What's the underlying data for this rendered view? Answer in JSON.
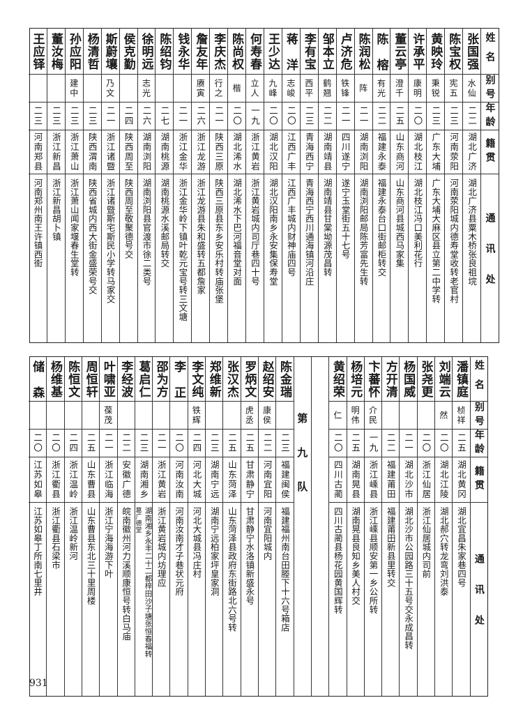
{
  "headers": {
    "name": "姓名",
    "alias": "别号",
    "age": "年龄",
    "native": "籍贯",
    "address": "通讯处"
  },
  "top_table": [
    {
      "name": "张国强",
      "alias": "水仙",
      "age": "二二",
      "native": "湖北广济",
      "address": "湖北广济县粟木桥张良祖垸"
    },
    {
      "name": "陈宝权",
      "alias": "宪五",
      "age": "二三",
      "native": "河南荥阳",
      "address": "河南荥阳城内德寿堂收转老官村"
    },
    {
      "name": "黄映玲",
      "alias": "秉锐",
      "age": "二三",
      "native": "广东大埔",
      "address": "广东大埔大麻区县立第二中学转"
    },
    {
      "name": "许承平",
      "alias": "康明",
      "age": "二〇",
      "native": "湖北枝江",
      "address": "湖北枝江冯口美利花行"
    },
    {
      "name": "董云亭",
      "alias": "澄千",
      "age": "二五",
      "native": "山东商河",
      "address": "山东商河县城西马家集"
    },
    {
      "name": "陈榕",
      "alias": "有光",
      "age": "二二",
      "native": "福建永泰",
      "address": "福建永泰台口街邮柜转交"
    },
    {
      "name": "陈润松",
      "alias": "阵",
      "age": "二一",
      "native": "湖南浏阳",
      "address": "湖南浏阳邮局陈芳富先生转"
    },
    {
      "name": "卢济危",
      "alias": "铁锋",
      "age": "二一",
      "native": "四川遂宁",
      "address": "遂宁玉堂街五十七号"
    },
    {
      "name": "邹本立",
      "alias": "鹤翘",
      "age": "二二",
      "native": "湖南靖县",
      "address": "湖南靖县甘棠坳源茂昌转"
    },
    {
      "name": "李有宝",
      "alias": "西平",
      "age": "二三",
      "native": "青海西宁",
      "address": "青海西宁西川通海镇河沿庄"
    },
    {
      "name": "蒋洋",
      "alias": "志峻",
      "age": "二〇",
      "native": "江西广丰",
      "address": "江西广丰城内财神庙四号"
    },
    {
      "name": "王少达",
      "alias": "九峰",
      "age": "二〇",
      "native": "湖北汉阳",
      "address": "湖北汉阳南乡永安集保寿堂"
    },
    {
      "name": "何寿春",
      "alias": "立人",
      "age": "一九",
      "native": "浙江黄岩",
      "address": "浙江黄岩城内司厅巷四十号"
    },
    {
      "name": "陈尚权",
      "alias": "楷",
      "age": "二〇",
      "native": "湖北浠水",
      "address": "湖北浠水下巴河福音堂对面"
    },
    {
      "name": "李庆杰",
      "alias": "行之",
      "age": "二一",
      "native": "陕西三原",
      "address": "陕西三原县东乡安乐村转庙张堡"
    },
    {
      "name": "詹友年",
      "alias": "赓寅",
      "age": "二六",
      "native": "浙江龙游",
      "address": "浙江龙游县朱和盛转五都詹家"
    },
    {
      "name": "钱永华",
      "alias": "",
      "age": "二一",
      "native": "浙江金华",
      "address": "浙江金华岭下镇叶乾元宝号转三文塘"
    },
    {
      "name": "陈绍钧",
      "alias": "",
      "age": "二七",
      "native": "湖南桃源",
      "address": "湖南桃源水溪邮局转交"
    },
    {
      "name": "徐明远",
      "alias": "志光",
      "age": "二六",
      "native": "湖南浏阳",
      "address": "湖南浏阳县官渡市徐二类号"
    },
    {
      "name": "侯克勤",
      "alias": "",
      "age": "二四",
      "native": "陕西周至",
      "address": "陕西周至敬聚德号交"
    },
    {
      "name": "斯蔚壤",
      "alias": "乃文",
      "age": "二一",
      "native": "浙江诸暨",
      "address": "浙江诸暨斯宅斯民小学转马家交"
    },
    {
      "name": "杨清哲",
      "alias": "",
      "age": "二三",
      "native": "陕西渭南",
      "address": "陕西省城内西大街金盛荣号交"
    },
    {
      "name": "孙应阳",
      "alias": "建中",
      "age": "二三",
      "native": "浙江萧山",
      "address": "浙江萧山闻家堰春生堂转"
    },
    {
      "name": "董汝梅",
      "alias": "",
      "age": "二三",
      "native": "浙江新昌",
      "address": "浙江新昌胡卜镇"
    },
    {
      "name": "王应铎",
      "alias": "",
      "age": "二三",
      "native": "河南郑县",
      "address": "河南郑州南王许镇西街"
    }
  ],
  "bottom_table": {
    "right_group": [
      {
        "name": "潘镇庭",
        "alias": "桢祥",
        "age": "二五",
        "native": "湖北黄冈",
        "address": "湖北宜昌朱家巷四号"
      },
      {
        "name": "刘端云",
        "alias": "然",
        "age": "二〇",
        "native": "湖北江陵",
        "address": "湖北郝穴转龙弯刘洪泰"
      },
      {
        "name": "张尧更",
        "alias": "",
        "age": "二〇",
        "native": "浙江仙居",
        "address": "浙江仙居城内司前"
      },
      {
        "name": "杨国威",
        "alias": "",
        "age": "二一",
        "native": "湖北沙市",
        "address": "湖北沙市公园路三十五号交永成昌转"
      },
      {
        "name": "方开清",
        "alias": "",
        "age": "二二",
        "native": "福建莆田",
        "address": "福建莆田新县里转交"
      },
      {
        "name": "卞蕃怀",
        "alias": "介民",
        "age": "一九",
        "native": "浙江嵊县",
        "address": "浙江嵊县顺安第一乡公所转"
      },
      {
        "name": "杨培元",
        "alias": "明伟",
        "age": "二五",
        "native": "湖南晃县",
        "address": "湖南晃县良知乡美人村交"
      },
      {
        "name": "黄绍荣",
        "alias": "仁",
        "age": "二〇",
        "native": "四川古蔺",
        "address": "四川古蔺县杨花园黄国辉转"
      }
    ],
    "team_label": "第九队",
    "left_group": [
      {
        "name": "陈金瑞",
        "alias": "",
        "age": "二三",
        "native": "福建闽侯",
        "address": "福建福州南台田塍下十六号箱店"
      },
      {
        "name": "赵绍安",
        "alias": "康侯",
        "age": "二二",
        "native": "河南宜阳",
        "address": "河南宜阳城内"
      },
      {
        "name": "罗炳文",
        "alias": "虎丞",
        "age": "二五",
        "native": "甘肃静宁",
        "address": "甘肃静宁水洛镇新盛永号"
      },
      {
        "name": "张汉杰",
        "alias": "",
        "age": "二五",
        "native": "山东菏泽",
        "address": "山东菏泽县政府东街路北六号转"
      },
      {
        "name": "郑维新",
        "alias": "",
        "age": "二三",
        "native": "湖南宁远",
        "address": "湖南宁远柏家坪皇家洞"
      },
      {
        "name": "李文纯",
        "alias": "铁辉",
        "age": "二四",
        "native": "河北大城",
        "address": "河北大城县冯庄村"
      },
      {
        "name": "李正",
        "alias": "",
        "age": "二〇",
        "native": "河南汝南",
        "address": "河南汝南才子巷状元府"
      },
      {
        "name": "邵为方",
        "alias": "",
        "age": "二一",
        "native": "浙江黄岩",
        "address": "浙江黄岩城内坊理应"
      },
      {
        "name": "葛启仁",
        "alias": "",
        "age": "二三",
        "native": "湖南湘乡",
        "address": "湖南湘乡永丰二十二都梓田沙子塘张恒春福转",
        "address_note": "葛广德堂"
      },
      {
        "name": "李经波",
        "alias": "",
        "age": "二二",
        "native": "安徽广德",
        "address": "皖南徽州河力溪顺康恒号转白马庙"
      },
      {
        "name": "叶啸亚",
        "alias": "葆茂",
        "age": "二一",
        "native": "浙江临海",
        "address": "浙江宁海海游下叶"
      },
      {
        "name": "周恒轩",
        "alias": "",
        "age": "二五",
        "native": "山东曹县",
        "address": "山东曹县东北三十里周楼"
      },
      {
        "name": "陈恒文",
        "alias": "",
        "age": "二四",
        "native": "浙江温岭",
        "address": "浙江温岭新河"
      },
      {
        "name": "杨维基",
        "alias": "",
        "age": "二〇",
        "native": "浙江衢县",
        "address": "浙江衢县石梁市"
      },
      {
        "name": "储森",
        "alias": "",
        "age": "二〇",
        "native": "江苏如皋",
        "address": "江苏如皋丁所南七里井"
      }
    ]
  },
  "page_number": "931"
}
